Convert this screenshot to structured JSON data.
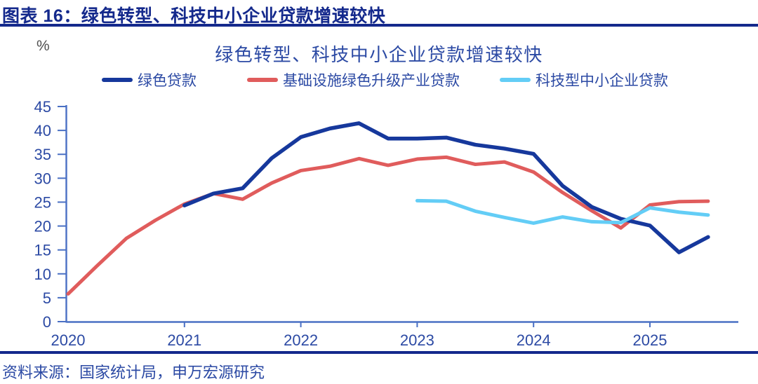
{
  "header": {
    "title": "图表 16：绿色转型、科技中小企业贷款增速较快"
  },
  "footer": {
    "source": "资料来源：国家统计局，申万宏源研究"
  },
  "colors": {
    "header_navy": "#14298c",
    "text_blue": "#2c4aa4",
    "axis_line": "#4a70c4",
    "unit_gray": "#4f4f4f",
    "series_green_loans": "#16389c",
    "series_infra_green": "#e05c5c",
    "series_tech_sme": "#63cdf6"
  },
  "chart_data": {
    "type": "line",
    "title": "绿色转型、科技中小企业贷款增速较快",
    "unit_label": "%",
    "grid": false,
    "legend_position": "top",
    "x_axis": {
      "ticks": [
        2020,
        2021,
        2022,
        2023,
        2024,
        2025
      ],
      "range": [
        2020,
        2025.75
      ]
    },
    "y_axis": {
      "min": 0,
      "max": 45,
      "step": 5
    },
    "series": [
      {
        "name": "绿色贷款",
        "color": "#16389c",
        "width": 5.5,
        "x": [
          2021.0,
          2021.25,
          2021.5,
          2021.75,
          2022.0,
          2022.25,
          2022.5,
          2022.75,
          2023.0,
          2023.25,
          2023.5,
          2023.75,
          2024.0,
          2024.25,
          2024.5,
          2024.75,
          2025.0,
          2025.25,
          2025.5
        ],
        "values": [
          24.3,
          26.8,
          27.9,
          34.2,
          38.6,
          40.4,
          41.5,
          38.3,
          38.3,
          38.5,
          37.0,
          36.2,
          35.1,
          28.4,
          24.0,
          21.5,
          20.1,
          14.5,
          17.7
        ]
      },
      {
        "name": "基础设施绿色升级产业贷款",
        "color": "#e05c5c",
        "width": 5,
        "x": [
          2020.0,
          2020.25,
          2020.5,
          2020.75,
          2021.0,
          2021.25,
          2021.5,
          2021.75,
          2022.0,
          2022.25,
          2022.5,
          2022.75,
          2023.0,
          2023.25,
          2023.5,
          2023.75,
          2024.0,
          2024.25,
          2024.5,
          2024.75,
          2025.0,
          2025.25,
          2025.5
        ],
        "values": [
          5.8,
          11.7,
          17.4,
          21.2,
          24.6,
          26.8,
          25.6,
          29.0,
          31.6,
          32.5,
          34.1,
          32.7,
          34.0,
          34.4,
          32.9,
          33.4,
          31.3,
          27.0,
          23.2,
          19.6,
          24.4,
          25.1,
          25.2
        ]
      },
      {
        "name": "科技型中小企业贷款",
        "color": "#63cdf6",
        "width": 5,
        "x": [
          2023.0,
          2023.25,
          2023.5,
          2023.75,
          2024.0,
          2024.25,
          2024.5,
          2024.75,
          2025.0,
          2025.25,
          2025.5
        ],
        "values": [
          25.3,
          25.2,
          23.1,
          21.8,
          20.6,
          21.9,
          20.9,
          20.7,
          23.8,
          22.9,
          22.3
        ]
      }
    ]
  }
}
